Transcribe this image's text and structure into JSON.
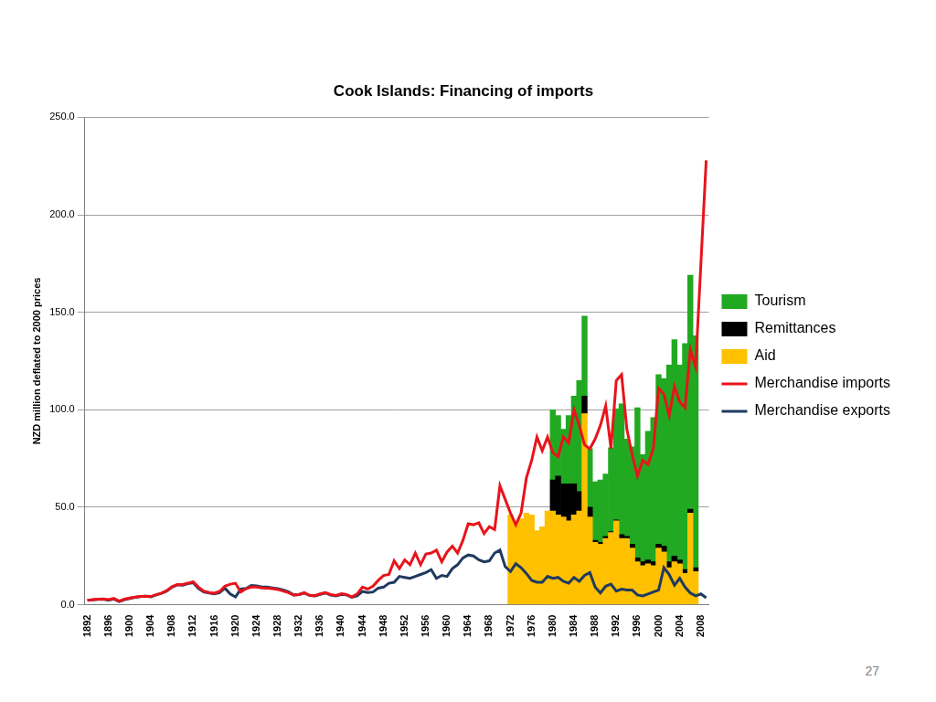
{
  "chart_data": {
    "type": "bar",
    "title": "Cook Islands: Financing of imports",
    "y_label": "NZD million deflated to 2000 prices",
    "annotations": [
      "27"
    ],
    "stacked": true,
    "grid": true,
    "legend": "right",
    "ylim": [
      0,
      250
    ],
    "yticks": [
      {
        "value": 0,
        "label": "0.0"
      },
      {
        "value": 50,
        "label": "50.0"
      },
      {
        "value": 100,
        "label": "100.0"
      },
      {
        "value": 150,
        "label": "150.0"
      },
      {
        "value": 200,
        "label": "200.0"
      },
      {
        "value": 250,
        "label": "250.0"
      }
    ],
    "categories": [
      "1892",
      null,
      null,
      null,
      "1896",
      null,
      null,
      null,
      "1900",
      null,
      null,
      null,
      "1904",
      null,
      null,
      null,
      "1908",
      null,
      null,
      null,
      "1912",
      null,
      null,
      null,
      "1916",
      null,
      null,
      null,
      "1920",
      null,
      null,
      null,
      "1924",
      null,
      null,
      null,
      "1928",
      null,
      null,
      null,
      "1932",
      null,
      null,
      null,
      "1936",
      null,
      null,
      null,
      "1940",
      null,
      null,
      null,
      "1944",
      null,
      null,
      null,
      "1948",
      null,
      null,
      null,
      "1952",
      null,
      null,
      null,
      "1956",
      null,
      null,
      null,
      "1960",
      null,
      null,
      null,
      "1964",
      null,
      null,
      null,
      "1968",
      null,
      null,
      null,
      "1972",
      null,
      null,
      null,
      "1976",
      null,
      null,
      null,
      "1980",
      null,
      null,
      null,
      "1984",
      null,
      null,
      null,
      "1988",
      null,
      null,
      null,
      "1992",
      null,
      null,
      null,
      "1996",
      null,
      null,
      null,
      "2000",
      null,
      null,
      null,
      "2004",
      null,
      null,
      null,
      "2008",
      null
    ],
    "series": [
      {
        "name": "Tourism",
        "type": "bar",
        "color": "#21a921",
        "values": [
          null,
          null,
          null,
          null,
          null,
          null,
          null,
          null,
          null,
          null,
          null,
          null,
          null,
          null,
          null,
          null,
          null,
          null,
          null,
          null,
          null,
          null,
          null,
          null,
          null,
          null,
          null,
          null,
          null,
          null,
          null,
          null,
          null,
          null,
          null,
          null,
          null,
          null,
          null,
          null,
          null,
          null,
          null,
          null,
          null,
          null,
          null,
          null,
          null,
          null,
          null,
          null,
          null,
          null,
          null,
          null,
          null,
          null,
          null,
          null,
          null,
          null,
          null,
          null,
          null,
          null,
          null,
          null,
          null,
          null,
          null,
          null,
          null,
          null,
          null,
          null,
          null,
          null,
          null,
          null,
          null,
          null,
          null,
          null,
          null,
          null,
          null,
          null,
          36,
          31,
          28,
          35,
          45,
          57,
          41,
          30,
          30,
          32,
          32,
          43,
          57,
          67,
          50,
          50,
          77,
          55,
          66,
          74,
          87,
          86,
          101,
          111,
          100,
          116,
          120,
          119,
          null,
          null
        ]
      },
      {
        "name": "Remittances",
        "type": "bar",
        "color": "#000000",
        "values": [
          null,
          null,
          null,
          null,
          null,
          null,
          null,
          null,
          null,
          null,
          null,
          null,
          null,
          null,
          null,
          null,
          null,
          null,
          null,
          null,
          null,
          null,
          null,
          null,
          null,
          null,
          null,
          null,
          null,
          null,
          null,
          null,
          null,
          null,
          null,
          null,
          null,
          null,
          null,
          null,
          null,
          null,
          null,
          null,
          null,
          null,
          null,
          null,
          null,
          null,
          null,
          null,
          null,
          null,
          null,
          null,
          null,
          null,
          null,
          null,
          null,
          null,
          null,
          null,
          null,
          null,
          null,
          null,
          null,
          null,
          null,
          null,
          null,
          null,
          null,
          null,
          null,
          null,
          null,
          null,
          null,
          null,
          null,
          null,
          null,
          null,
          null,
          null,
          16,
          20,
          17,
          19,
          16,
          10,
          9,
          5,
          1,
          1,
          1,
          0.5,
          0.5,
          2,
          1,
          2,
          2,
          2,
          2,
          2,
          2,
          3,
          3,
          3,
          2,
          2,
          2,
          2,
          null,
          null
        ]
      },
      {
        "name": "Aid",
        "type": "bar",
        "color": "#ffc000",
        "values": [
          null,
          null,
          null,
          null,
          null,
          null,
          null,
          null,
          null,
          null,
          null,
          null,
          null,
          null,
          null,
          null,
          null,
          null,
          null,
          null,
          null,
          null,
          null,
          null,
          null,
          null,
          null,
          null,
          null,
          null,
          null,
          null,
          null,
          null,
          null,
          null,
          null,
          null,
          null,
          null,
          null,
          null,
          null,
          null,
          null,
          null,
          null,
          null,
          null,
          null,
          null,
          null,
          null,
          null,
          null,
          null,
          null,
          null,
          null,
          null,
          null,
          null,
          null,
          null,
          null,
          null,
          null,
          null,
          null,
          null,
          null,
          null,
          null,
          null,
          null,
          null,
          null,
          null,
          null,
          null,
          46,
          42,
          44,
          47,
          46,
          38,
          40,
          48,
          48,
          46,
          45,
          43,
          46,
          48,
          98,
          45,
          32,
          31,
          34,
          37,
          43,
          34,
          34,
          29,
          22,
          20,
          21,
          20,
          29,
          27,
          19,
          22,
          21,
          16,
          47,
          17,
          null,
          null
        ]
      },
      {
        "name": "Merchandise imports",
        "type": "line",
        "color": "#e8141b",
        "values": [
          2.3,
          2.6,
          2.8,
          2.9,
          2.6,
          3.2,
          1.8,
          2.8,
          3.4,
          3.9,
          4.2,
          4.4,
          4.2,
          5.1,
          5.9,
          7.2,
          9.2,
          10.3,
          10.3,
          11.0,
          11.8,
          9.0,
          7.0,
          6.2,
          5.9,
          6.8,
          9.5,
          10.5,
          11.0,
          6.5,
          8.2,
          9.0,
          9.0,
          8.6,
          8.4,
          8.2,
          7.8,
          7.0,
          6.2,
          5.0,
          5.2,
          6.2,
          4.8,
          4.6,
          5.5,
          6.2,
          5.2,
          4.7,
          5.6,
          5.2,
          4.0,
          5.5,
          9.0,
          8.0,
          9.5,
          12.5,
          15.0,
          15.5,
          22.5,
          18.5,
          23.0,
          20.5,
          26.5,
          20.5,
          26.0,
          26.5,
          28.0,
          22.0,
          27.0,
          30.0,
          26.5,
          33.0,
          41.5,
          41.0,
          42.0,
          36.5,
          40.0,
          38.5,
          61.0,
          54.0,
          47,
          41,
          47,
          65,
          74,
          86,
          79,
          86,
          78,
          76,
          86,
          83,
          100,
          92,
          82,
          80,
          85,
          92,
          102,
          80,
          115,
          118,
          90,
          77,
          66,
          74,
          72,
          80,
          111,
          108,
          97,
          112,
          104,
          101,
          131,
          122,
          175,
          228
        ]
      },
      {
        "name": "Merchandise exports",
        "type": "line",
        "color": "#1f3a5f",
        "values": [
          2.2,
          2.5,
          2.7,
          2.8,
          2.3,
          2.9,
          1.6,
          2.6,
          3.2,
          3.8,
          4.1,
          4.3,
          4.0,
          5.0,
          5.8,
          7.0,
          9.0,
          10.2,
          10.0,
          10.8,
          11.3,
          8.3,
          6.5,
          6.0,
          5.5,
          6.2,
          8.5,
          5.5,
          4.0,
          8.0,
          8.3,
          9.8,
          9.6,
          9.0,
          9.0,
          8.6,
          8.2,
          7.5,
          6.6,
          5.0,
          5.2,
          6.0,
          4.8,
          4.5,
          5.3,
          6.0,
          4.9,
          4.5,
          5.3,
          5.0,
          3.8,
          4.5,
          6.8,
          6.2,
          6.5,
          8.5,
          9.0,
          11.0,
          11.5,
          14.5,
          14.0,
          13.5,
          14.5,
          15.5,
          16.5,
          18.0,
          13.5,
          15.0,
          14.5,
          18.5,
          20.5,
          24.0,
          25.5,
          25.0,
          23.0,
          22.0,
          22.5,
          26.5,
          28.0,
          19.5,
          17,
          21,
          19,
          16,
          12.5,
          11.5,
          11.5,
          14.5,
          13.5,
          14,
          12,
          11,
          14,
          12,
          15,
          16.5,
          9,
          6,
          9.5,
          10.5,
          7,
          8,
          7.5,
          7.5,
          5,
          4.5,
          5.5,
          6.5,
          7.5,
          19,
          15.5,
          10,
          13.5,
          9,
          6,
          4.5,
          5.5,
          3.5
        ]
      }
    ]
  }
}
